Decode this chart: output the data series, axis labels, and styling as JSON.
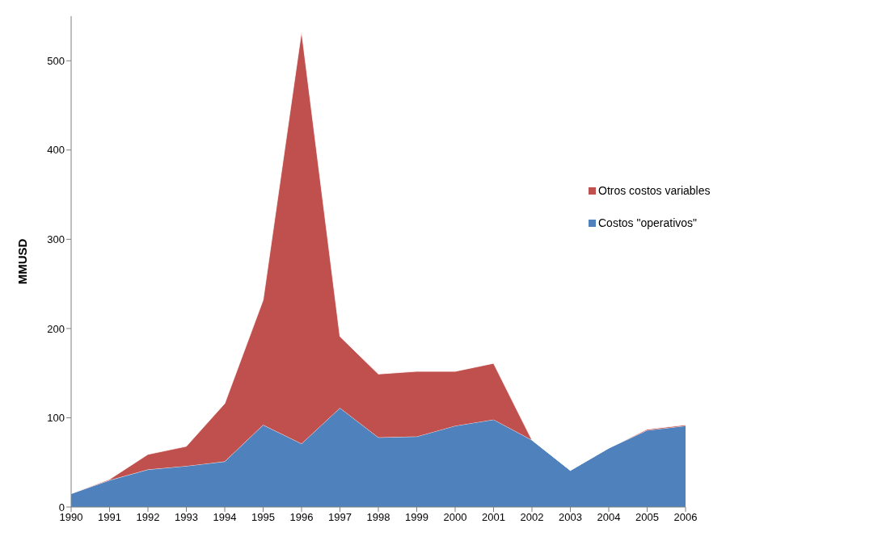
{
  "chart_data": {
    "type": "area",
    "stacked": true,
    "ylabel": "MMUSD",
    "categories": [
      "1990",
      "1991",
      "1992",
      "1993",
      "1994",
      "1995",
      "1996",
      "1997",
      "1998",
      "1999",
      "2000",
      "2001",
      "2002",
      "2003",
      "2004",
      "2005",
      "2006"
    ],
    "series": [
      {
        "name": "Costos \"operativos\"",
        "color": "#4f81bd",
        "values": [
          15,
          30,
          42,
          46,
          51,
          92,
          71,
          111,
          78,
          79,
          91,
          98,
          75,
          41,
          66,
          86,
          91
        ]
      },
      {
        "name": "Otros costos variables",
        "color": "#c0504d",
        "values": [
          0,
          1,
          17,
          22,
          65,
          140,
          462,
          80,
          71,
          73,
          61,
          63,
          0,
          0,
          0,
          1,
          1
        ]
      }
    ],
    "ylim": [
      0,
      550
    ],
    "yticks": [
      0,
      100,
      200,
      300,
      400,
      500
    ],
    "grid": false,
    "legend": "right"
  }
}
